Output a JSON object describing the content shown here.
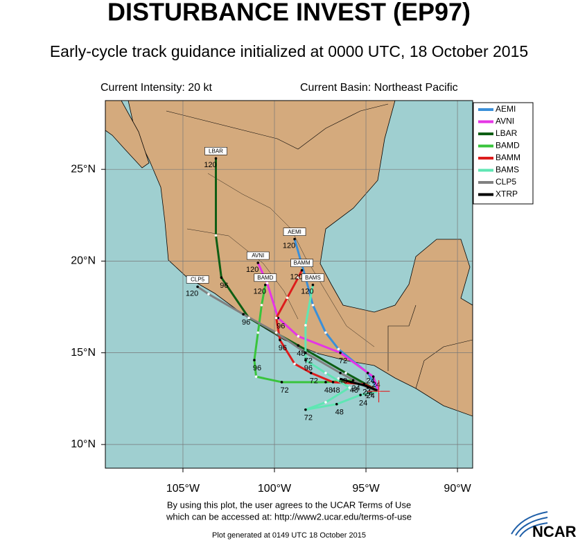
{
  "map": {
    "title": "DISTURBANCE INVEST (EP97)",
    "subtitle": "Early-cycle track guidance initialized at 0000 UTC, 18 October 2015",
    "current_intensity": "Current Intensity: 20 kt",
    "current_basin": "Current Basin: Northeast Pacific",
    "xlim": [
      -109.24,
      -89.17
    ],
    "ylim": [
      8.71,
      28.75
    ],
    "xticks": [
      {
        "value": -105,
        "label": "105°W"
      },
      {
        "value": -100,
        "label": "100°W"
      },
      {
        "value": -95,
        "label": "95°W"
      },
      {
        "value": -90,
        "label": "90°W"
      }
    ],
    "yticks": [
      {
        "value": 25,
        "label": "25°N"
      },
      {
        "value": 20,
        "label": "20°N"
      },
      {
        "value": 15,
        "label": "15°N"
      },
      {
        "value": 10,
        "label": "10°N"
      }
    ],
    "grid": true,
    "models": [
      {
        "name": "AEMI",
        "color": "#3a8fd9",
        "points": [
          {
            "lon": -94.3,
            "lat": 12.9
          },
          {
            "lon": -94.9,
            "lat": 13.9,
            "hour": 24
          },
          {
            "lon": -96.5,
            "lat": 15.2
          },
          {
            "lon": -97.2,
            "lat": 16.1
          },
          {
            "lon": -97.9,
            "lat": 17.6
          },
          {
            "lon": -98.3,
            "lat": 19.1
          },
          {
            "lon": -98.9,
            "lat": 21.2,
            "hour": 120
          }
        ]
      },
      {
        "name": "AVNI",
        "color": "#e535e5",
        "points": [
          {
            "lon": -94.3,
            "lat": 12.9
          },
          {
            "lon": -94.6,
            "lat": 13.7,
            "hour": 24
          },
          {
            "lon": -96.4,
            "lat": 15.0,
            "hour": 72
          },
          {
            "lon": -98.7,
            "lat": 15.9
          },
          {
            "lon": -99.8,
            "lat": 16.9,
            "hour": 96
          },
          {
            "lon": -100.4,
            "lat": 18.8
          },
          {
            "lon": -100.9,
            "lat": 19.9,
            "hour": 120
          }
        ]
      },
      {
        "name": "LBAR",
        "color": "#0e5e14",
        "points": [
          {
            "lon": -94.3,
            "lat": 12.9
          },
          {
            "lon": -96.1,
            "lat": 13.9
          },
          {
            "lon": -98.7,
            "lat": 15.4,
            "hour": 48
          },
          {
            "lon": -101.4,
            "lat": 16.9
          },
          {
            "lon": -102.9,
            "lat": 19.1,
            "hour": 96
          },
          {
            "lon": -103.2,
            "lat": 21.4
          },
          {
            "lon": -103.2,
            "lat": 25.6,
            "hour": 120
          }
        ]
      },
      {
        "name": "BAMD",
        "color": "#39c43c",
        "points": [
          {
            "lon": -94.3,
            "lat": 12.9
          },
          {
            "lon": -95.7,
            "lat": 13.5,
            "hour": 24
          },
          {
            "lon": -97.2,
            "lat": 13.4,
            "hour": 48
          },
          {
            "lon": -99.6,
            "lat": 13.4,
            "hour": 72
          },
          {
            "lon": -101.0,
            "lat": 13.7
          },
          {
            "lon": -101.1,
            "lat": 14.6,
            "hour": 96
          },
          {
            "lon": -100.9,
            "lat": 16.1
          },
          {
            "lon": -100.7,
            "lat": 17.6
          },
          {
            "lon": -100.5,
            "lat": 18.7,
            "hour": 120
          }
        ]
      },
      {
        "name": "BAMM",
        "color": "#dd1c1c",
        "points": [
          {
            "lon": -94.3,
            "lat": 12.9
          },
          {
            "lon": -95.1,
            "lat": 13.3,
            "hour": 24
          },
          {
            "lon": -96.8,
            "lat": 13.4,
            "hour": 48
          },
          {
            "lon": -98.0,
            "lat": 13.9,
            "hour": 72
          },
          {
            "lon": -98.9,
            "lat": 14.4
          },
          {
            "lon": -99.7,
            "lat": 15.7,
            "hour": 96
          },
          {
            "lon": -99.9,
            "lat": 16.9
          },
          {
            "lon": -99.3,
            "lat": 18.0
          },
          {
            "lon": -98.7,
            "lat": 19.1
          },
          {
            "lon": -98.5,
            "lat": 19.5,
            "hour": 120
          }
        ]
      },
      {
        "name": "BAMS",
        "color": "#5fe6b3",
        "points": [
          {
            "lon": -94.3,
            "lat": 12.9
          },
          {
            "lon": -95.3,
            "lat": 12.7,
            "hour": 24
          },
          {
            "lon": -96.6,
            "lat": 12.2,
            "hour": 48
          },
          {
            "lon": -98.3,
            "lat": 11.9,
            "hour": 72
          },
          {
            "lon": -97.2,
            "lat": 12.3
          },
          {
            "lon": -95.9,
            "lat": 13.1
          },
          {
            "lon": -97.2,
            "lat": 13.9
          },
          {
            "lon": -98.3,
            "lat": 14.6,
            "hour": 96
          },
          {
            "lon": -98.3,
            "lat": 16.5
          },
          {
            "lon": -97.9,
            "lat": 18.7,
            "hour": 120
          }
        ]
      },
      {
        "name": "CLP5",
        "color": "#808080",
        "points": [
          {
            "lon": -94.3,
            "lat": 12.9
          },
          {
            "lon": -94.9,
            "lat": 13.1,
            "hour": 24
          },
          {
            "lon": -96.4,
            "lat": 13.9,
            "hour": 48
          },
          {
            "lon": -98.3,
            "lat": 15.0,
            "hour": 72
          },
          {
            "lon": -99.9,
            "lat": 16.1
          },
          {
            "lon": -101.7,
            "lat": 17.1,
            "hour": 96
          },
          {
            "lon": -103.6,
            "lat": 18.2
          },
          {
            "lon": -104.2,
            "lat": 18.6,
            "hour": 120
          }
        ]
      },
      {
        "name": "XTRP",
        "color": "#000000",
        "points": [
          {
            "lon": -94.3,
            "lat": 12.9
          },
          {
            "lon": -95.0,
            "lat": 13.2,
            "hour": 24
          },
          {
            "lon": -95.8,
            "lat": 13.4,
            "hour": 48
          },
          {
            "lon": -96.5,
            "lat": 13.6
          }
        ]
      }
    ],
    "footer": [
      "By using this plot, the user agrees to the UCAR Terms of Use",
      "which can be accessed at: http://www2.ucar.edu/terms-of-use"
    ],
    "generated": "Plot generated at 0149 UTC   18 October 2015",
    "logo": "NCAR"
  }
}
